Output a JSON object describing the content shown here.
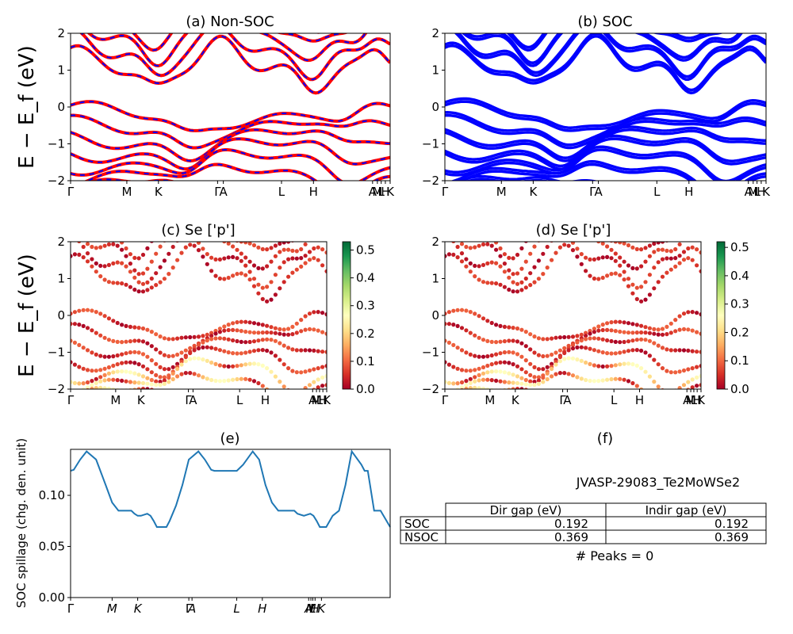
{
  "panels": {
    "a": {
      "title": "(a) Non-SOC"
    },
    "b": {
      "title": "(b) SOC"
    },
    "c": {
      "title": "(c)  Se ['p']"
    },
    "d": {
      "title": "(d) Se ['p']"
    },
    "e": {
      "title": "(e)"
    },
    "f": {
      "title": "(f)"
    }
  },
  "band_ylabel": "E − E_f (eV)",
  "band_ylim": [
    -2,
    2
  ],
  "band_yticks": [
    "2",
    "1",
    "0",
    "−1",
    "−2"
  ],
  "band_kticks": [
    "Γ",
    "M",
    "K",
    "Γ",
    "A",
    "L",
    "H",
    "A",
    "M",
    "L",
    "H",
    "K"
  ],
  "colorbar_c": {
    "ticks": [
      "0.5",
      "0.4",
      "0.3",
      "0.2",
      "0.1",
      "0.0"
    ],
    "max": 0.53,
    "colormap": "RdYlGn"
  },
  "colorbar_d": {
    "ticks": [
      "0.5",
      "0.4",
      "0.3",
      "0.2",
      "0.1",
      "0.0"
    ],
    "max": 0.52,
    "colormap": "RdYlGn"
  },
  "colors": {
    "nonsoc_red": "#ff0000",
    "nonsoc_blue": "#0000ff",
    "soc_blue": "#0000ff",
    "spillage_line": "#1f77b4"
  },
  "spillage": {
    "ylabel": "SOC spillage (chg. den. unit)",
    "yticks": [
      "0.10",
      "0.05",
      "0.00"
    ],
    "kticks": [
      "Γ",
      "M",
      "K",
      "Γ",
      "A",
      "L",
      "H",
      "A",
      "M",
      "L",
      "H",
      "K"
    ]
  },
  "table": {
    "material": "JVASP-29083_Te2MoWSe2",
    "headers": [
      "Dir gap (eV)",
      "Indir gap (eV)"
    ],
    "rows": [
      {
        "label": "SOC",
        "dir": "0.192",
        "indir": "0.192"
      },
      {
        "label": "NSOC",
        "dir": "0.369",
        "indir": "0.369"
      }
    ],
    "peaks": "# Peaks = 0"
  },
  "chart_data": [
    {
      "type": "line",
      "title": "(a) Non-SOC",
      "ylabel": "E − E_f (eV)",
      "ylim": [
        -2,
        2
      ],
      "xticks": [
        "Γ",
        "M",
        "K",
        "Γ",
        "A",
        "L",
        "H",
        "A",
        "M",
        "L",
        "H",
        "K"
      ],
      "series": [
        {
          "color": "red"
        },
        {
          "color": "blue"
        }
      ],
      "band_gap_eV": 0.369
    },
    {
      "type": "line",
      "title": "(b) SOC",
      "ylim": [
        -2,
        2
      ],
      "xticks": [
        "Γ",
        "M",
        "K",
        "Γ",
        "A",
        "L",
        "H",
        "A",
        "M",
        "L",
        "H",
        "K"
      ],
      "series": [
        {
          "color": "blue"
        }
      ],
      "band_gap_eV": 0.192
    },
    {
      "type": "scatter",
      "title": "(c)  Se ['p']",
      "ylabel": "E − E_f (eV)",
      "ylim": [
        -2,
        2
      ],
      "colorbar_range": [
        0.0,
        0.53
      ]
    },
    {
      "type": "scatter",
      "title": "(d) Se ['p']",
      "ylim": [
        -2,
        2
      ],
      "colorbar_range": [
        0.0,
        0.52
      ]
    },
    {
      "type": "line",
      "title": "(e)",
      "ylabel": "SOC spillage (chg. den. unit)",
      "ylim": [
        0.0,
        0.145
      ],
      "x": [
        0,
        0.01,
        0.03,
        0.05,
        0.08,
        0.11,
        0.13,
        0.15,
        0.17,
        0.19,
        0.2,
        0.21,
        0.22,
        0.24,
        0.25,
        0.26,
        0.27,
        0.28,
        0.3,
        0.31,
        0.33,
        0.35,
        0.37,
        0.4,
        0.42,
        0.44,
        0.45,
        0.47,
        0.49,
        0.52,
        0.54,
        0.57,
        0.59,
        0.61,
        0.63,
        0.65,
        0.68,
        0.7,
        0.71,
        0.73,
        0.75,
        0.76,
        0.77,
        0.78,
        0.79,
        0.8,
        0.82,
        0.84,
        0.86,
        0.88,
        0.91,
        0.92,
        0.93,
        0.95,
        0.97,
        1.0
      ],
      "y": [
        0.124,
        0.125,
        0.135,
        0.143,
        0.135,
        0.11,
        0.093,
        0.085,
        0.085,
        0.085,
        0.082,
        0.08,
        0.08,
        0.082,
        0.08,
        0.075,
        0.069,
        0.069,
        0.069,
        0.075,
        0.09,
        0.11,
        0.135,
        0.143,
        0.135,
        0.125,
        0.124,
        0.124,
        0.124,
        0.124,
        0.13,
        0.143,
        0.135,
        0.11,
        0.093,
        0.085,
        0.085,
        0.085,
        0.082,
        0.08,
        0.082,
        0.08,
        0.075,
        0.069,
        0.069,
        0.069,
        0.08,
        0.085,
        0.11,
        0.143,
        0.13,
        0.124,
        0.124,
        0.085,
        0.085,
        0.069
      ]
    }
  ]
}
